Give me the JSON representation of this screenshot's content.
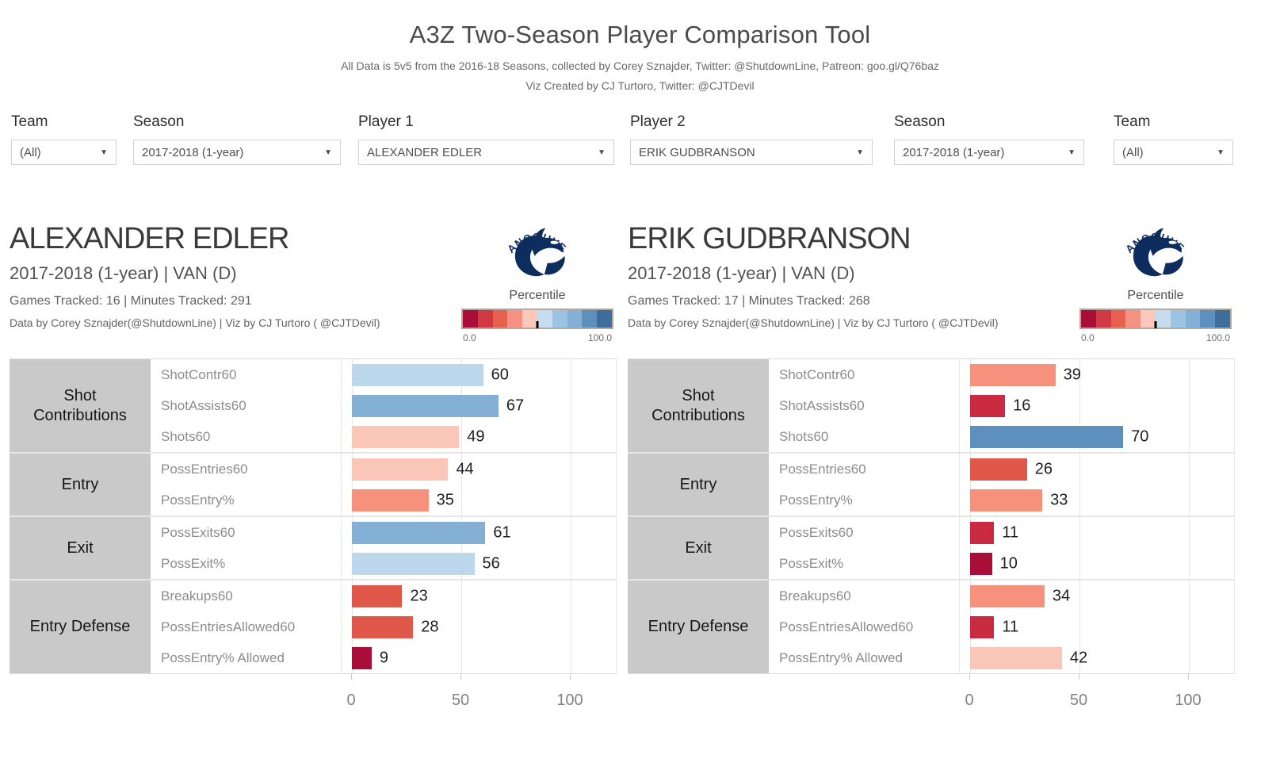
{
  "title": "A3Z Two-Season Player Comparison Tool",
  "subtitle_line1": "All Data is 5v5 from the 2016-18 Seasons, collected by Corey Sznajder, Twitter: @ShutdownLine, Patreon: goo.gl/Q76baz",
  "subtitle_line2": "Viz Created by CJ Turtoro, Twitter: @CJTDevil",
  "filters": [
    {
      "id": "team-left",
      "label": "Team",
      "value": "(All)"
    },
    {
      "id": "season-left",
      "label": "Season",
      "value": "2017-2018 (1-year)"
    },
    {
      "id": "player-1",
      "label": "Player 1",
      "value": "ALEXANDER EDLER"
    },
    {
      "id": "player-2",
      "label": "Player 2",
      "value": "ERIK GUDBRANSON"
    },
    {
      "id": "season-right",
      "label": "Season",
      "value": "2017-2018 (1-year)"
    },
    {
      "id": "team-right",
      "label": "Team",
      "value": "(All)"
    }
  ],
  "legend": {
    "title": "Percentile",
    "min_label": "0.0",
    "max_label": "100.0",
    "logo_text": "VANCOUVER",
    "logo_color": "#0c2d5e",
    "band_colors": [
      "#a90e38",
      "#d13a44",
      "#e8604e",
      "#f59180",
      "#fbc8bb",
      "#c6dcef",
      "#9cc3e1",
      "#85b0d5",
      "#5e90bd",
      "#3f6e9c"
    ]
  },
  "color_thresholds": [
    {
      "max": 10,
      "color": "#a90e38"
    },
    {
      "max": 20,
      "color": "#cb2b40"
    },
    {
      "max": 30,
      "color": "#e0584a"
    },
    {
      "max": 40,
      "color": "#f5917d"
    },
    {
      "max": 50,
      "color": "#fac6b8"
    },
    {
      "max": 60,
      "color": "#bdd7ec"
    },
    {
      "max": 69,
      "color": "#85b0d5"
    },
    {
      "max": 80,
      "color": "#5e90bd"
    },
    {
      "max": 90,
      "color": "#41729f"
    },
    {
      "max": 100,
      "color": "#2d5f8d"
    }
  ],
  "players": [
    {
      "name": "ALEXANDER EDLER",
      "season_team": "2017-2018 (1-year) | VAN (D)",
      "games_line": "Games Tracked: 16  | Minutes Tracked: 291",
      "credit_line": "Data by Corey Sznajder(@ShutdownLine) | Viz by CJ Turtoro ( @CJTDevil)"
    },
    {
      "name": "ERIK GUDBRANSON",
      "season_team": "2017-2018 (1-year) | VAN (D)",
      "games_line": "Games Tracked: 17  | Minutes Tracked: 268",
      "credit_line": "Data by Corey Sznajder(@ShutdownLine) | Viz by CJ Turtoro ( @CJTDevil)"
    }
  ],
  "chart_data": [
    {
      "type": "bar",
      "orientation": "horizontal",
      "title": "ALEXANDER EDLER percentiles",
      "xlim": [
        0,
        100
      ],
      "xticks": [
        0,
        50,
        100
      ],
      "grid": true,
      "groups": [
        {
          "category": "Shot Contributions",
          "metrics": [
            {
              "label": "ShotContr60",
              "value": 60
            },
            {
              "label": "ShotAssists60",
              "value": 67
            },
            {
              "label": "Shots60",
              "value": 49
            }
          ]
        },
        {
          "category": "Entry",
          "metrics": [
            {
              "label": "PossEntries60",
              "value": 44
            },
            {
              "label": "PossEntry%",
              "value": 35
            }
          ]
        },
        {
          "category": "Exit",
          "metrics": [
            {
              "label": "PossExits60",
              "value": 61
            },
            {
              "label": "PossExit%",
              "value": 56
            }
          ]
        },
        {
          "category": "Entry Defense",
          "metrics": [
            {
              "label": "Breakups60",
              "value": 23
            },
            {
              "label": "PossEntriesAllowed60",
              "value": 28
            },
            {
              "label": "PossEntry% Allowed",
              "value": 9
            }
          ]
        }
      ]
    },
    {
      "type": "bar",
      "orientation": "horizontal",
      "title": "ERIK GUDBRANSON percentiles",
      "xlim": [
        0,
        100
      ],
      "xticks": [
        0,
        50,
        100
      ],
      "grid": true,
      "groups": [
        {
          "category": "Shot Contributions",
          "metrics": [
            {
              "label": "ShotContr60",
              "value": 39
            },
            {
              "label": "ShotAssists60",
              "value": 16
            },
            {
              "label": "Shots60",
              "value": 70
            }
          ]
        },
        {
          "category": "Entry",
          "metrics": [
            {
              "label": "PossEntries60",
              "value": 26
            },
            {
              "label": "PossEntry%",
              "value": 33
            }
          ]
        },
        {
          "category": "Exit",
          "metrics": [
            {
              "label": "PossExits60",
              "value": 11
            },
            {
              "label": "PossExit%",
              "value": 10
            }
          ]
        },
        {
          "category": "Entry Defense",
          "metrics": [
            {
              "label": "Breakups60",
              "value": 34
            },
            {
              "label": "PossEntriesAllowed60",
              "value": 11
            },
            {
              "label": "PossEntry% Allowed",
              "value": 42
            }
          ]
        }
      ]
    }
  ]
}
